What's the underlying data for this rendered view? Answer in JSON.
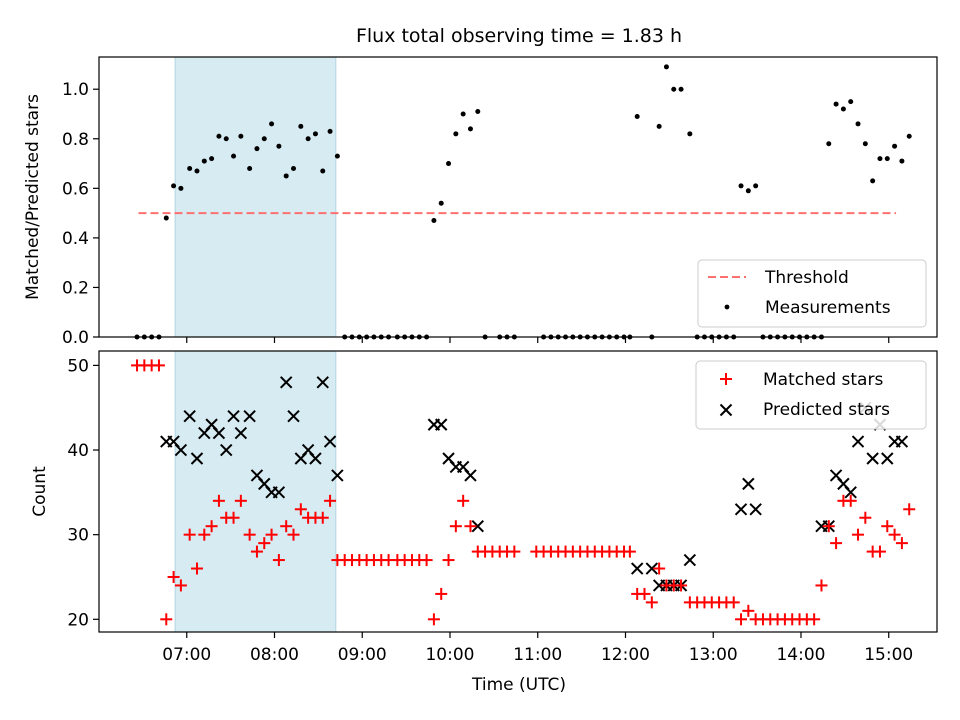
{
  "title": "Flux total observing time = 1.83 h",
  "xlabel": "Time (UTC)",
  "x_tick_labels": [
    "07:00",
    "08:00",
    "09:00",
    "10:00",
    "11:00",
    "12:00",
    "13:00",
    "14:00",
    "15:00"
  ],
  "colors": {
    "threshold": "#ff7070",
    "measurements": "#000000",
    "matched": "#ff0000",
    "predicted": "#000000",
    "highlight": "#add8e6"
  },
  "chart_data": [
    {
      "type": "scatter",
      "ylabel": "Matched/Predicted stars",
      "ylim": [
        0,
        1.13
      ],
      "xlim": [
        "06:00",
        "15:33"
      ],
      "y_tick_labels": [
        "0.0",
        "0.2",
        "0.4",
        "0.6",
        "0.8",
        "1.0"
      ],
      "highlight_span": [
        "06:52",
        "08:42"
      ],
      "threshold": {
        "label": "Threshold",
        "value": 0.5,
        "x": [
          "06:27",
          "15:05"
        ]
      },
      "legend": {
        "position": "lower right",
        "entries": [
          "Threshold",
          "Measurements"
        ]
      },
      "series": [
        {
          "name": "Measurements",
          "points": [
            [
              "06:26",
              0.0
            ],
            [
              "06:31",
              0.0
            ],
            [
              "06:36",
              0.0
            ],
            [
              "06:41",
              0.0
            ],
            [
              "06:46",
              0.48
            ],
            [
              "06:51",
              0.61
            ],
            [
              "06:56",
              0.6
            ],
            [
              "07:02",
              0.68
            ],
            [
              "07:07",
              0.67
            ],
            [
              "07:12",
              0.71
            ],
            [
              "07:17",
              0.72
            ],
            [
              "07:22",
              0.81
            ],
            [
              "07:27",
              0.8
            ],
            [
              "07:32",
              0.73
            ],
            [
              "07:37",
              0.81
            ],
            [
              "07:43",
              0.68
            ],
            [
              "07:48",
              0.76
            ],
            [
              "07:53",
              0.8
            ],
            [
              "07:58",
              0.86
            ],
            [
              "08:03",
              0.77
            ],
            [
              "08:08",
              0.65
            ],
            [
              "08:13",
              0.68
            ],
            [
              "08:18",
              0.85
            ],
            [
              "08:23",
              0.8
            ],
            [
              "08:28",
              0.82
            ],
            [
              "08:33",
              0.67
            ],
            [
              "08:38",
              0.83
            ],
            [
              "08:43",
              0.73
            ],
            [
              "08:48",
              0.0
            ],
            [
              "08:53",
              0.0
            ],
            [
              "08:58",
              0.0
            ],
            [
              "09:03",
              0.0
            ],
            [
              "09:08",
              0.0
            ],
            [
              "09:13",
              0.0
            ],
            [
              "09:18",
              0.0
            ],
            [
              "09:24",
              0.0
            ],
            [
              "09:29",
              0.0
            ],
            [
              "09:34",
              0.0
            ],
            [
              "09:39",
              0.0
            ],
            [
              "09:44",
              0.0
            ],
            [
              "09:49",
              0.47
            ],
            [
              "09:54",
              0.54
            ],
            [
              "09:59",
              0.7
            ],
            [
              "10:04",
              0.82
            ],
            [
              "10:09",
              0.9
            ],
            [
              "10:14",
              0.84
            ],
            [
              "10:19",
              0.91
            ],
            [
              "10:24",
              0.0
            ],
            [
              "10:34",
              0.0
            ],
            [
              "10:39",
              0.0
            ],
            [
              "10:44",
              0.0
            ],
            [
              "11:04",
              0.0
            ],
            [
              "11:09",
              0.0
            ],
            [
              "11:14",
              0.0
            ],
            [
              "11:19",
              0.0
            ],
            [
              "11:24",
              0.0
            ],
            [
              "11:29",
              0.0
            ],
            [
              "11:34",
              0.0
            ],
            [
              "11:39",
              0.0
            ],
            [
              "11:44",
              0.0
            ],
            [
              "11:49",
              0.0
            ],
            [
              "11:54",
              0.0
            ],
            [
              "11:59",
              0.0
            ],
            [
              "12:03",
              0.0
            ],
            [
              "12:08",
              0.89
            ],
            [
              "12:18",
              0.0
            ],
            [
              "12:23",
              0.85
            ],
            [
              "12:28",
              1.09
            ],
            [
              "12:33",
              1.0
            ],
            [
              "12:38",
              1.0
            ],
            [
              "12:44",
              0.82
            ],
            [
              "12:49",
              0.0
            ],
            [
              "12:54",
              0.0
            ],
            [
              "12:59",
              0.0
            ],
            [
              "13:04",
              0.0
            ],
            [
              "13:09",
              0.0
            ],
            [
              "13:14",
              0.0
            ],
            [
              "13:19",
              0.61
            ],
            [
              "13:24",
              0.59
            ],
            [
              "13:29",
              0.61
            ],
            [
              "13:34",
              0.0
            ],
            [
              "13:39",
              0.0
            ],
            [
              "13:44",
              0.0
            ],
            [
              "13:49",
              0.0
            ],
            [
              "13:54",
              0.0
            ],
            [
              "13:59",
              0.0
            ],
            [
              "14:04",
              0.0
            ],
            [
              "14:09",
              0.0
            ],
            [
              "14:14",
              0.0
            ],
            [
              "14:19",
              0.78
            ],
            [
              "14:24",
              0.94
            ],
            [
              "14:29",
              0.92
            ],
            [
              "14:34",
              0.95
            ],
            [
              "14:39",
              0.86
            ],
            [
              "14:44",
              0.78
            ],
            [
              "14:49",
              0.63
            ],
            [
              "14:54",
              0.72
            ],
            [
              "14:59",
              0.72
            ],
            [
              "15:04",
              0.77
            ],
            [
              "15:09",
              0.71
            ],
            [
              "15:14",
              0.81
            ]
          ]
        }
      ]
    },
    {
      "type": "scatter",
      "ylabel": "Count",
      "ylim": [
        18.5,
        51.7
      ],
      "xlim": [
        "06:00",
        "15:33"
      ],
      "y_tick_labels": [
        "20",
        "30",
        "40",
        "50"
      ],
      "highlight_span": [
        "06:52",
        "08:42"
      ],
      "legend": {
        "position": "upper right",
        "entries": [
          "Matched stars",
          "Predicted stars"
        ]
      },
      "series": [
        {
          "name": "Matched stars",
          "marker": "+",
          "points": [
            [
              "06:26",
              50
            ],
            [
              "06:31",
              50
            ],
            [
              "06:36",
              50
            ],
            [
              "06:41",
              50
            ],
            [
              "06:46",
              20
            ],
            [
              "06:51",
              25
            ],
            [
              "06:56",
              24
            ],
            [
              "07:02",
              30
            ],
            [
              "07:07",
              26
            ],
            [
              "07:12",
              30
            ],
            [
              "07:17",
              31
            ],
            [
              "07:22",
              34
            ],
            [
              "07:27",
              32
            ],
            [
              "07:32",
              32
            ],
            [
              "07:37",
              34
            ],
            [
              "07:43",
              30
            ],
            [
              "07:48",
              28
            ],
            [
              "07:53",
              29
            ],
            [
              "07:58",
              30
            ],
            [
              "08:03",
              27
            ],
            [
              "08:08",
              31
            ],
            [
              "08:13",
              30
            ],
            [
              "08:18",
              33
            ],
            [
              "08:23",
              32
            ],
            [
              "08:28",
              32
            ],
            [
              "08:33",
              32
            ],
            [
              "08:38",
              34
            ],
            [
              "08:43",
              27
            ],
            [
              "08:48",
              27
            ],
            [
              "08:53",
              27
            ],
            [
              "08:58",
              27
            ],
            [
              "09:03",
              27
            ],
            [
              "09:08",
              27
            ],
            [
              "09:13",
              27
            ],
            [
              "09:18",
              27
            ],
            [
              "09:24",
              27
            ],
            [
              "09:29",
              27
            ],
            [
              "09:34",
              27
            ],
            [
              "09:39",
              27
            ],
            [
              "09:44",
              27
            ],
            [
              "09:49",
              20
            ],
            [
              "09:54",
              23
            ],
            [
              "09:59",
              27
            ],
            [
              "10:04",
              31
            ],
            [
              "10:09",
              34
            ],
            [
              "10:14",
              31
            ],
            [
              "10:19",
              28
            ],
            [
              "10:24",
              28
            ],
            [
              "10:29",
              28
            ],
            [
              "10:34",
              28
            ],
            [
              "10:39",
              28
            ],
            [
              "10:44",
              28
            ],
            [
              "10:59",
              28
            ],
            [
              "11:04",
              28
            ],
            [
              "11:09",
              28
            ],
            [
              "11:14",
              28
            ],
            [
              "11:19",
              28
            ],
            [
              "11:24",
              28
            ],
            [
              "11:29",
              28
            ],
            [
              "11:34",
              28
            ],
            [
              "11:39",
              28
            ],
            [
              "11:44",
              28
            ],
            [
              "11:49",
              28
            ],
            [
              "11:54",
              28
            ],
            [
              "11:59",
              28
            ],
            [
              "12:03",
              28
            ],
            [
              "12:08",
              23
            ],
            [
              "12:13",
              23
            ],
            [
              "12:18",
              22
            ],
            [
              "12:23",
              26
            ],
            [
              "12:28",
              24
            ],
            [
              "12:33",
              24
            ],
            [
              "12:38",
              24
            ],
            [
              "12:44",
              22
            ],
            [
              "12:49",
              22
            ],
            [
              "12:54",
              22
            ],
            [
              "12:59",
              22
            ],
            [
              "13:04",
              22
            ],
            [
              "13:09",
              22
            ],
            [
              "13:14",
              22
            ],
            [
              "13:19",
              20
            ],
            [
              "13:24",
              21
            ],
            [
              "13:29",
              20
            ],
            [
              "13:34",
              20
            ],
            [
              "13:39",
              20
            ],
            [
              "13:44",
              20
            ],
            [
              "13:49",
              20
            ],
            [
              "13:54",
              20
            ],
            [
              "13:59",
              20
            ],
            [
              "14:04",
              20
            ],
            [
              "14:09",
              20
            ],
            [
              "14:14",
              24
            ],
            [
              "14:19",
              31
            ],
            [
              "14:24",
              29
            ],
            [
              "14:29",
              34
            ],
            [
              "14:34",
              34
            ],
            [
              "14:39",
              30
            ],
            [
              "14:44",
              32
            ],
            [
              "14:49",
              28
            ],
            [
              "14:54",
              28
            ],
            [
              "14:59",
              31
            ],
            [
              "15:04",
              30
            ],
            [
              "15:09",
              29
            ],
            [
              "15:14",
              33
            ]
          ]
        },
        {
          "name": "Predicted stars",
          "marker": "x",
          "points": [
            [
              "06:46",
              41
            ],
            [
              "06:51",
              41
            ],
            [
              "06:56",
              40
            ],
            [
              "07:02",
              44
            ],
            [
              "07:07",
              39
            ],
            [
              "07:12",
              42
            ],
            [
              "07:17",
              43
            ],
            [
              "07:22",
              42
            ],
            [
              "07:27",
              40
            ],
            [
              "07:32",
              44
            ],
            [
              "07:37",
              42
            ],
            [
              "07:43",
              44
            ],
            [
              "07:48",
              37
            ],
            [
              "07:53",
              36
            ],
            [
              "07:58",
              35
            ],
            [
              "08:03",
              35
            ],
            [
              "08:08",
              48
            ],
            [
              "08:13",
              44
            ],
            [
              "08:18",
              39
            ],
            [
              "08:23",
              40
            ],
            [
              "08:28",
              39
            ],
            [
              "08:33",
              48
            ],
            [
              "08:38",
              41
            ],
            [
              "08:43",
              37
            ],
            [
              "09:49",
              43
            ],
            [
              "09:54",
              43
            ],
            [
              "09:59",
              39
            ],
            [
              "10:04",
              38
            ],
            [
              "10:09",
              38
            ],
            [
              "10:14",
              37
            ],
            [
              "10:19",
              31
            ],
            [
              "12:08",
              26
            ],
            [
              "12:18",
              26
            ],
            [
              "12:23",
              24
            ],
            [
              "12:28",
              24
            ],
            [
              "12:33",
              24
            ],
            [
              "12:38",
              24
            ],
            [
              "12:44",
              27
            ],
            [
              "13:19",
              33
            ],
            [
              "13:24",
              36
            ],
            [
              "13:29",
              33
            ],
            [
              "14:14",
              31
            ],
            [
              "14:19",
              31
            ],
            [
              "14:24",
              37
            ],
            [
              "14:29",
              36
            ],
            [
              "14:34",
              35
            ],
            [
              "14:39",
              41
            ],
            [
              "14:44",
              45
            ],
            [
              "14:49",
              39
            ],
            [
              "14:54",
              43
            ],
            [
              "14:59",
              39
            ],
            [
              "15:04",
              41
            ],
            [
              "15:09",
              41
            ]
          ]
        }
      ]
    }
  ]
}
